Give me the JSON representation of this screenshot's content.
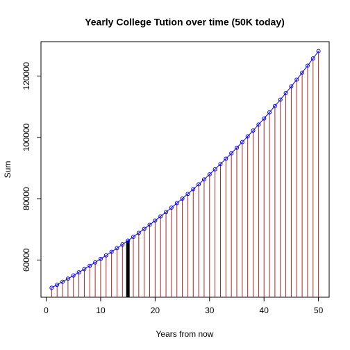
{
  "chart_data": {
    "type": "line",
    "title": "Yearly College Tution over time (50K today)",
    "x_label": "Years from now",
    "y_label": "Sum",
    "x": [
      1,
      2,
      3,
      4,
      5,
      6,
      7,
      8,
      9,
      10,
      11,
      12,
      13,
      14,
      15,
      16,
      17,
      18,
      19,
      20,
      21,
      22,
      23,
      24,
      25,
      26,
      27,
      28,
      29,
      30,
      31,
      32,
      33,
      34,
      35,
      36,
      37,
      38,
      39,
      40,
      41,
      42,
      43,
      44,
      45,
      46,
      47,
      48,
      49,
      50
    ],
    "series": [
      {
        "name": "Sum",
        "color": "#0000ff",
        "stem_color": "#b22222",
        "values": [
          50950,
          51918,
          52905,
          53910,
          54934,
          55978,
          57041,
          58125,
          59229,
          60355,
          61502,
          62670,
          63861,
          65074,
          66311,
          67570,
          68854,
          70163,
          71496,
          72854,
          74238,
          75649,
          77086,
          78551,
          80043,
          81564,
          83114,
          84693,
          86302,
          87942,
          89613,
          91315,
          93050,
          94818,
          96620,
          98456,
          100326,
          102233,
          104175,
          106154,
          108171,
          110227,
          112321,
          114455,
          116630,
          118846,
          121104,
          123405,
          125749,
          128139
        ]
      }
    ],
    "highlight_x": 15,
    "highlight_color": "#000000",
    "xlim": [
      -0.96,
      51.96
    ],
    "ylim": [
      47862,
      131227
    ],
    "xticks": [
      0,
      10,
      20,
      30,
      40,
      50
    ],
    "yticks": [
      60000,
      80000,
      100000,
      120000
    ]
  }
}
